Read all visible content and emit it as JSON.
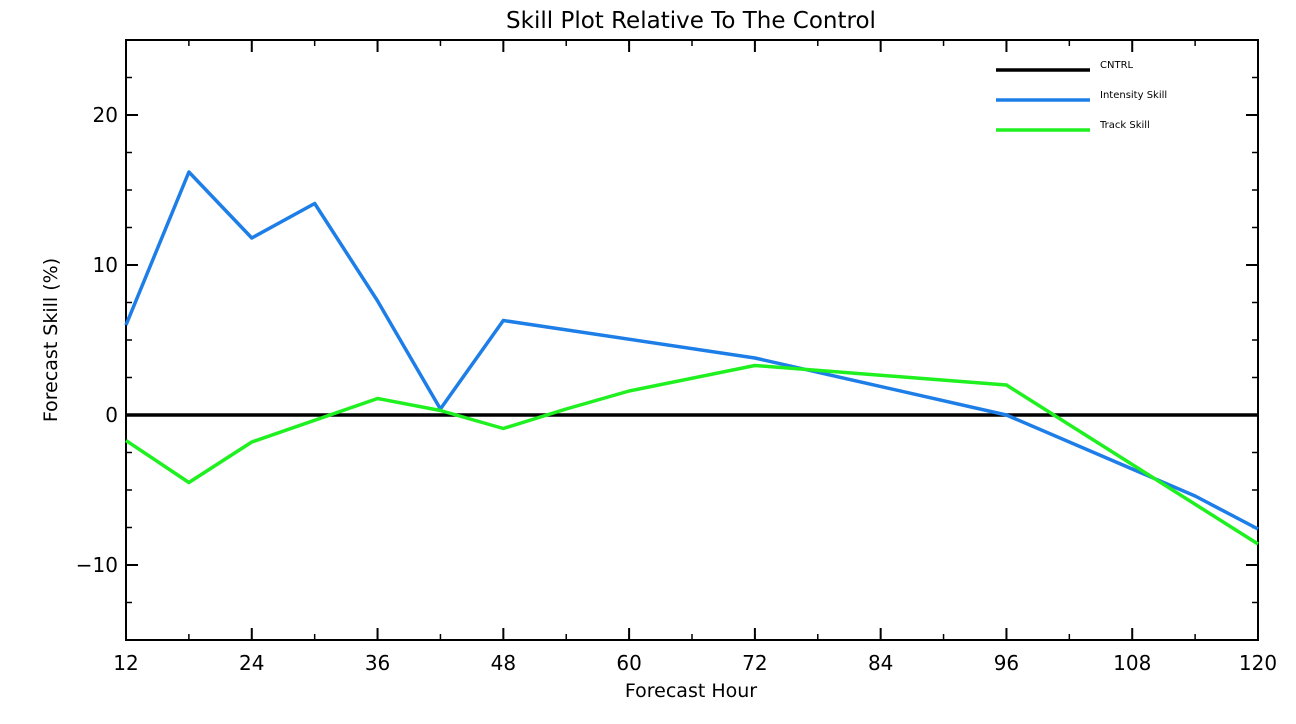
{
  "chart_data": {
    "type": "line",
    "title": "Skill Plot Relative To The Control",
    "xlabel": "Forecast Hour",
    "ylabel": "Forecast Skill (%)",
    "xlim": [
      12,
      120
    ],
    "ylim": [
      -15,
      25
    ],
    "x_ticks": [
      12,
      24,
      36,
      48,
      60,
      72,
      84,
      96,
      108,
      120
    ],
    "x_tick_labels": [
      "12",
      "24",
      "36",
      "48",
      "60",
      "72",
      "84",
      "96",
      "108",
      "120"
    ],
    "y_ticks": [
      -10,
      0,
      10,
      20
    ],
    "y_tick_labels": [
      "−10",
      "0",
      "10",
      "20"
    ],
    "x_minor_step": 6,
    "y_minor_step": 2.5,
    "legend_position": "top-right",
    "grid": false,
    "series": [
      {
        "name": "CNTRL",
        "color": "#000000",
        "x": [
          12,
          120
        ],
        "values": [
          0,
          0
        ]
      },
      {
        "name": "Intensity Skill",
        "color": "#1e7ee8",
        "x": [
          12,
          18,
          24,
          30,
          36,
          42,
          48,
          72,
          96,
          114,
          120
        ],
        "values": [
          6.0,
          16.2,
          11.8,
          14.1,
          7.6,
          0.4,
          6.3,
          3.8,
          0.0,
          -5.4,
          -7.6
        ]
      },
      {
        "name": "Track Skill",
        "color": "#1ff01f",
        "x": [
          12,
          18,
          24,
          36,
          42,
          48,
          54,
          60,
          72,
          96,
          120
        ],
        "values": [
          -1.7,
          -4.5,
          -1.8,
          1.1,
          0.3,
          -0.9,
          0.4,
          1.6,
          3.3,
          2.0,
          -8.6
        ]
      }
    ]
  }
}
